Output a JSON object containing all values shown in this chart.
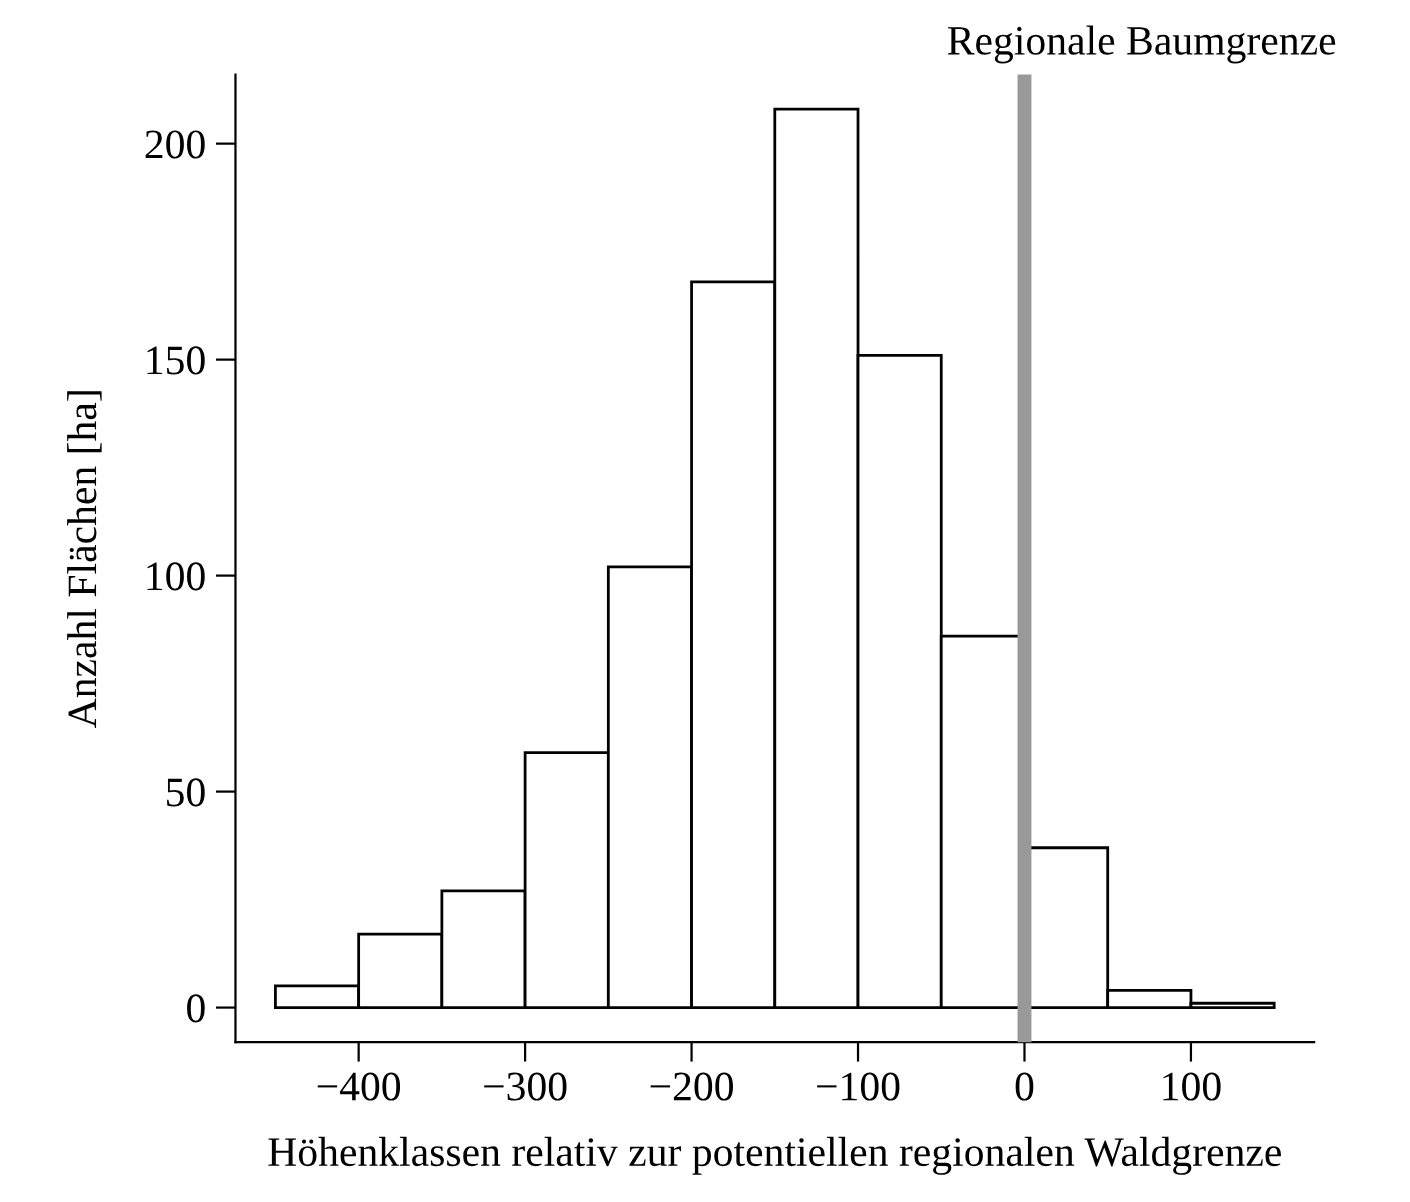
{
  "chart_data": {
    "type": "histogram",
    "xlabel": "Höhenklassen relativ zur potentiellen regionalen Waldgrenze",
    "ylabel": "Anzahl Flächen [ha]",
    "bins": [
      -450,
      -400,
      -350,
      -300,
      -250,
      -200,
      -150,
      -100,
      -50,
      0,
      50,
      100,
      150
    ],
    "values": [
      5,
      17,
      27,
      59,
      102,
      168,
      208,
      151,
      86,
      37,
      4,
      1
    ],
    "color": "#ffffff",
    "xlim": [
      -474,
      174
    ],
    "ylim": [
      -8,
      216
    ],
    "xticks": [
      {
        "value": -400,
        "label": "−400"
      },
      {
        "value": -300,
        "label": "−300"
      },
      {
        "value": -200,
        "label": "−200"
      },
      {
        "value": -100,
        "label": "−100"
      },
      0,
      100
    ],
    "yticks": [
      0,
      50,
      100,
      150,
      200
    ],
    "ref_lines": [
      {
        "axis": "x",
        "value": 0,
        "label": "Regionale Baumgrenze",
        "color": "#999999"
      }
    ],
    "grid": false
  }
}
